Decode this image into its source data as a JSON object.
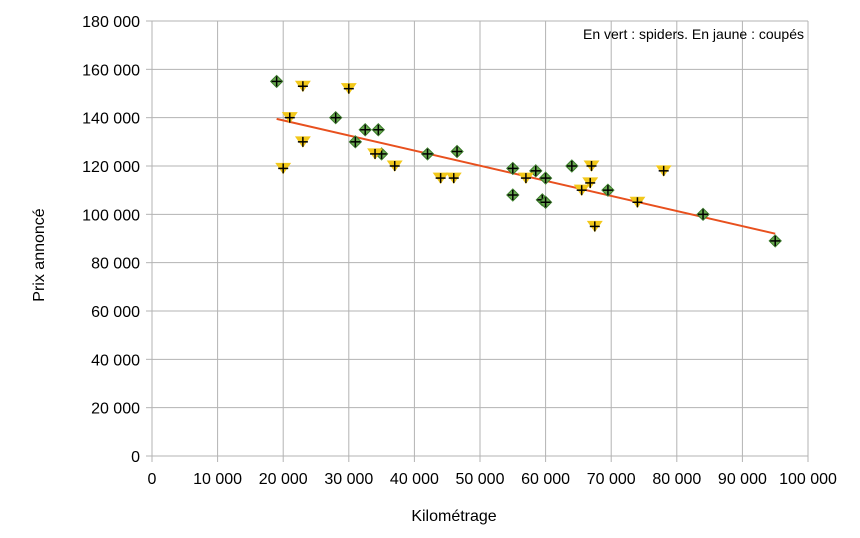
{
  "chart_data": {
    "type": "scatter",
    "xlabel": "Kilométrage",
    "ylabel": "Prix annoncé",
    "annotation": "En vert : spiders. En jaune : coupés",
    "xlim": [
      0,
      100000
    ],
    "ylim": [
      0,
      180000
    ],
    "x_ticks": [
      0,
      10000,
      20000,
      30000,
      40000,
      50000,
      60000,
      70000,
      80000,
      90000,
      100000
    ],
    "x_tick_labels": [
      "0",
      "10 000",
      "20 000",
      "30 000",
      "40 000",
      "50 000",
      "60 000",
      "70 000",
      "80 000",
      "90 000",
      "100 000"
    ],
    "y_ticks": [
      0,
      20000,
      40000,
      60000,
      80000,
      100000,
      120000,
      140000,
      160000,
      180000
    ],
    "y_tick_labels": [
      "0",
      "20 000",
      "40 000",
      "60 000",
      "80 000",
      "100 000",
      "120 000",
      "140 000",
      "160 000",
      "180 000"
    ],
    "grid": true,
    "colors": {
      "spider": "#3a7a2a",
      "spider_fill": "#6aaa50",
      "coupe": "#f2c81a",
      "trend": "#e8501e",
      "grid": "#b3b3b3"
    },
    "series": [
      {
        "marker": "diamond",
        "points": [
          [
            19000,
            155000
          ],
          [
            28000,
            140000
          ],
          [
            31000,
            130000
          ],
          [
            32500,
            135000
          ],
          [
            34500,
            135000
          ],
          [
            35000,
            125000
          ],
          [
            42000,
            125000
          ],
          [
            46500,
            126000
          ],
          [
            55000,
            119000
          ],
          [
            55000,
            108000
          ],
          [
            58500,
            118000
          ],
          [
            59500,
            106000
          ],
          [
            60000,
            105000
          ],
          [
            60000,
            115000
          ],
          [
            64000,
            120000
          ],
          [
            69500,
            110000
          ],
          [
            84000,
            100000
          ],
          [
            95000,
            89000
          ]
        ]
      },
      {
        "marker": "triangle-down",
        "points": [
          [
            20000,
            119000
          ],
          [
            21000,
            140000
          ],
          [
            23000,
            153000
          ],
          [
            23000,
            130000
          ],
          [
            30000,
            152000
          ],
          [
            34000,
            125000
          ],
          [
            37000,
            120000
          ],
          [
            44000,
            115000
          ],
          [
            46000,
            115000
          ],
          [
            57000,
            115000
          ],
          [
            65500,
            110000
          ],
          [
            66800,
            113000
          ],
          [
            67000,
            120000
          ],
          [
            67500,
            95000
          ],
          [
            74000,
            105000
          ],
          [
            78000,
            118000
          ]
        ]
      }
    ],
    "trendline": {
      "x": [
        19000,
        95000
      ],
      "y": [
        139500,
        92000
      ]
    }
  }
}
